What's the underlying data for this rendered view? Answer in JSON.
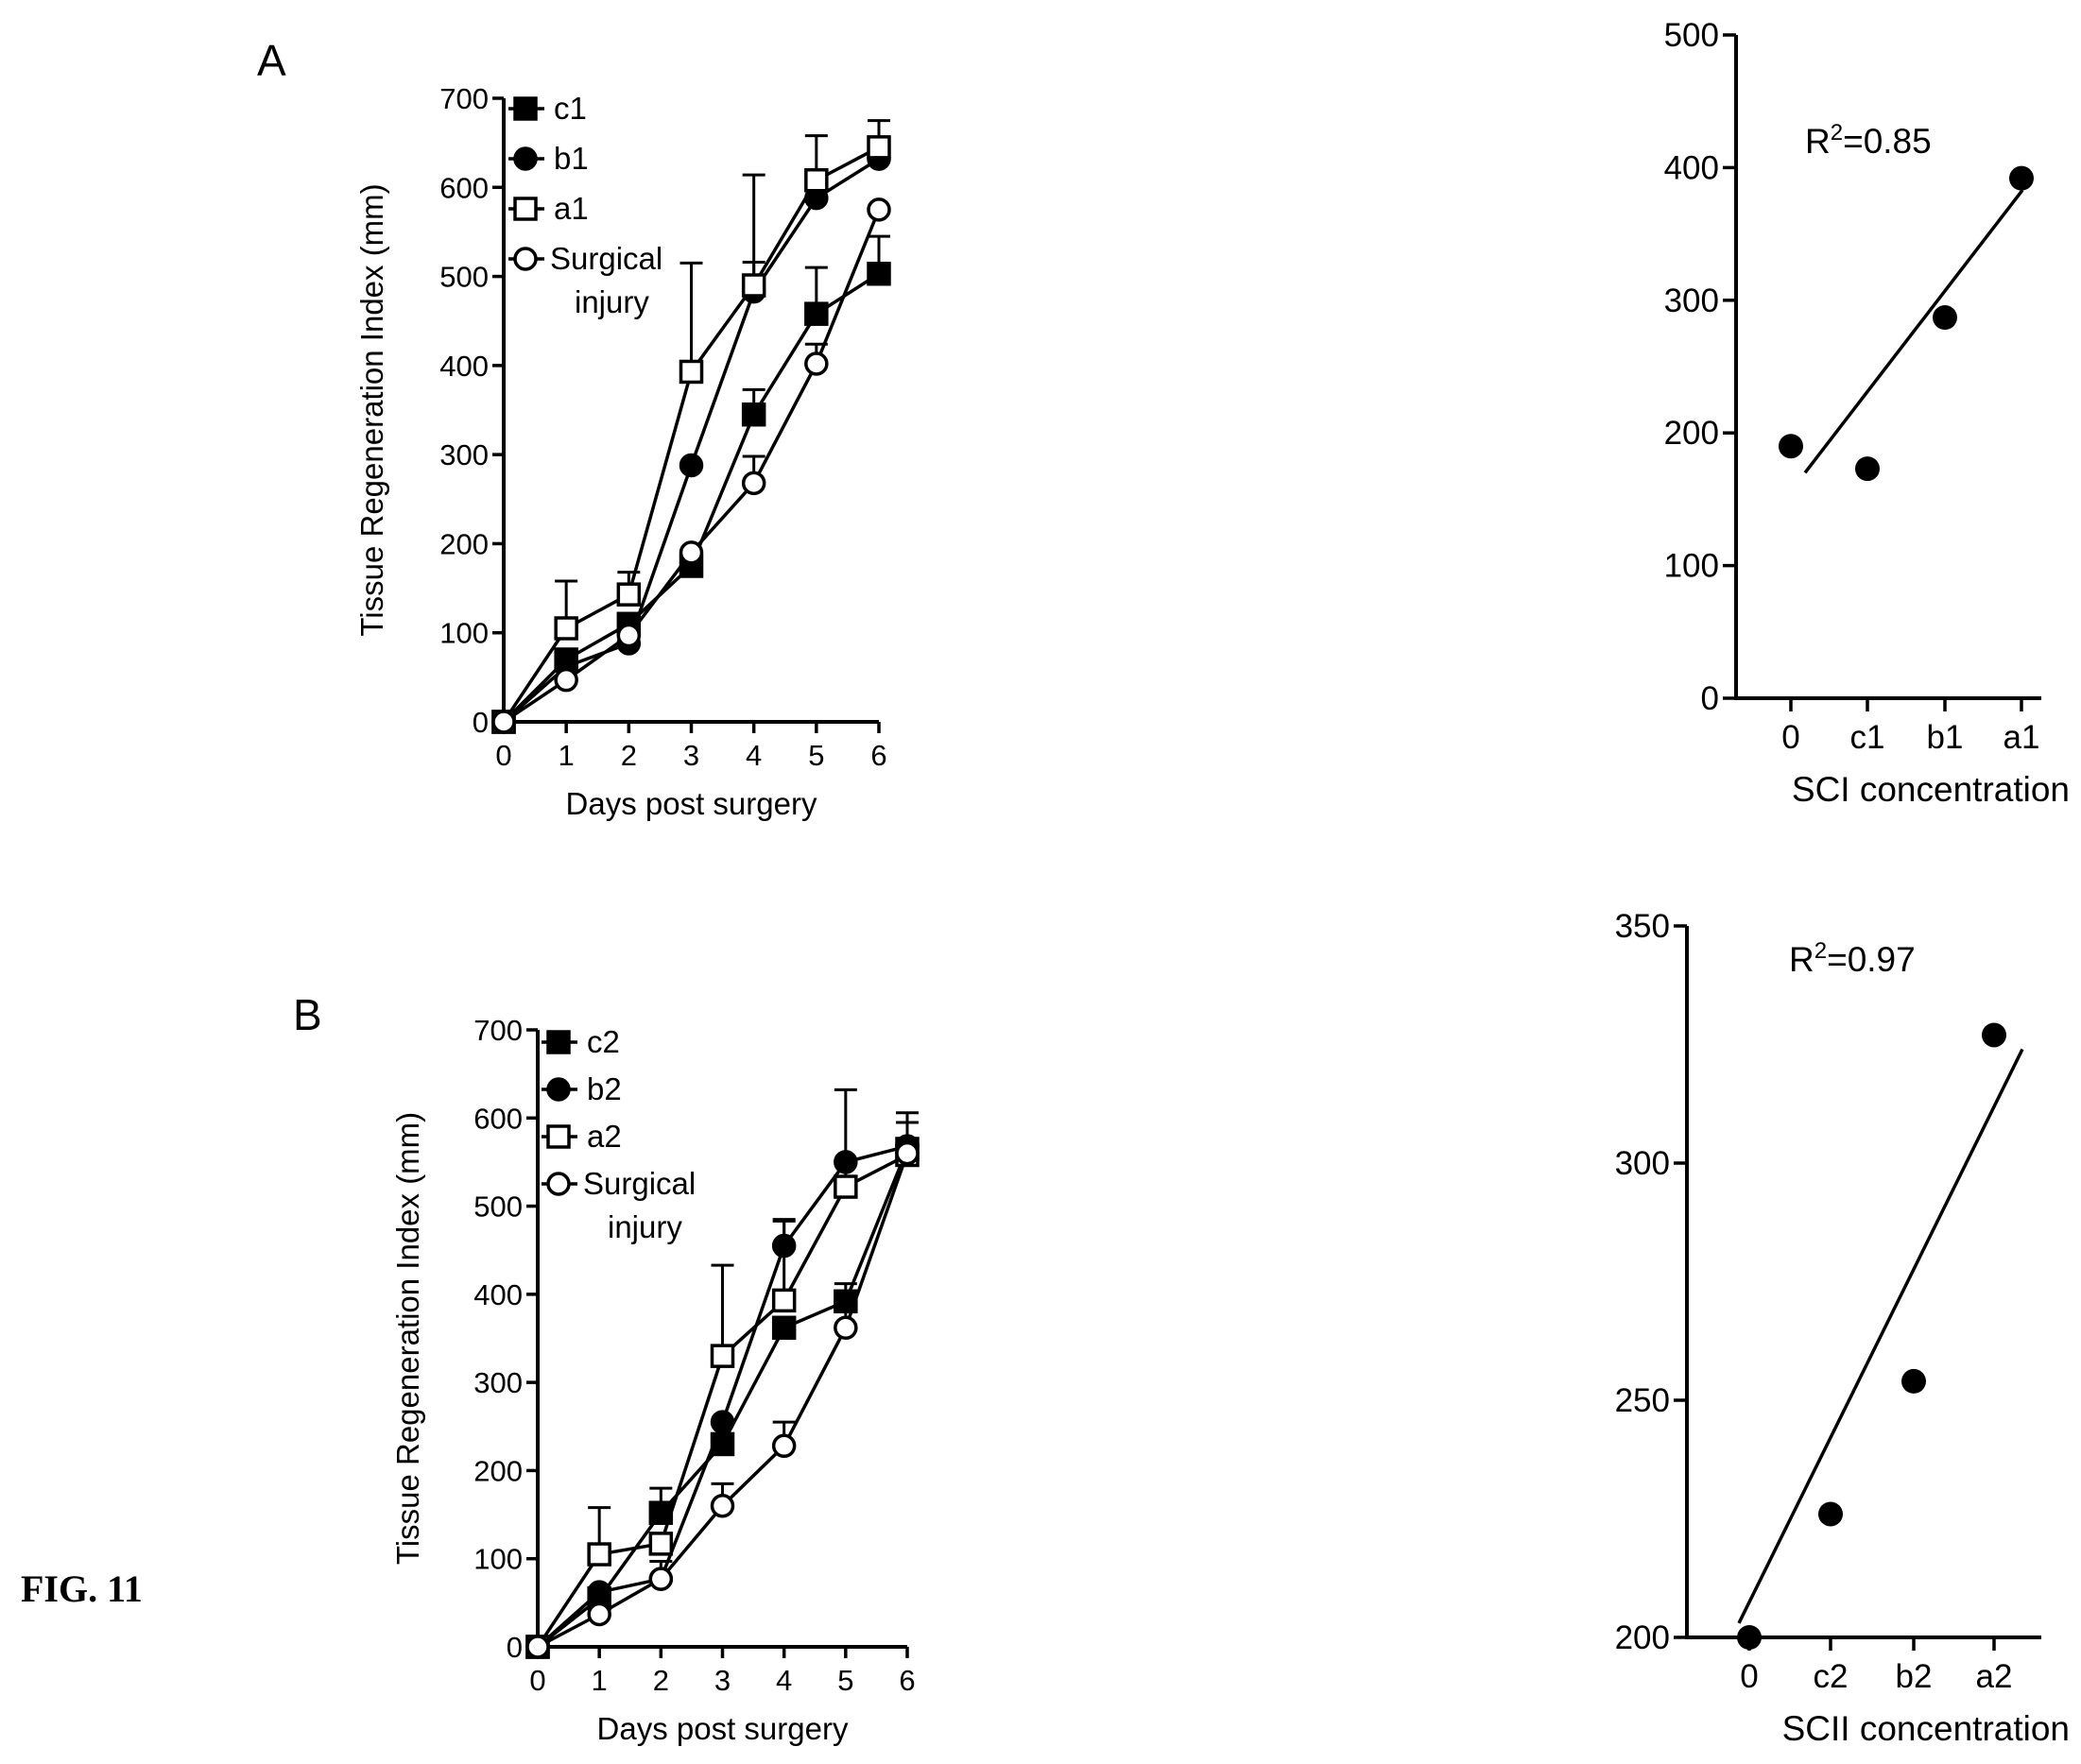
{
  "figure": {
    "caption": "FIG. 11"
  },
  "chart_data": [
    {
      "id": "A-left",
      "panel_label": "A",
      "type": "line",
      "xlabel": "Days post surgery",
      "ylabel": "Tissue Regeneration Index (mm)",
      "x": [
        0,
        1,
        2,
        3,
        4,
        5,
        6
      ],
      "xlim": [
        0,
        6
      ],
      "ylim": [
        0,
        700
      ],
      "xticks": [
        "0",
        "1",
        "2",
        "3",
        "4",
        "5",
        "6"
      ],
      "yticks": [
        "0",
        "100",
        "200",
        "300",
        "400",
        "500",
        "600",
        "700"
      ],
      "legend_position": "top-left",
      "series": [
        {
          "name": "c1",
          "marker": "square-filled",
          "values": [
            0,
            70,
            110,
            175,
            345,
            458,
            503
          ],
          "err": [
            0,
            0,
            0,
            0,
            28,
            52,
            42
          ]
        },
        {
          "name": "b1",
          "marker": "circle-filled",
          "values": [
            0,
            62,
            88,
            288,
            483,
            588,
            632
          ],
          "err": [
            0,
            0,
            20,
            0,
            33,
            0,
            0
          ]
        },
        {
          "name": "a1",
          "marker": "square-open",
          "values": [
            0,
            105,
            143,
            393,
            490,
            608,
            645
          ],
          "err": [
            0,
            53,
            25,
            122,
            124,
            50,
            30
          ]
        },
        {
          "name": "Surgical injury",
          "marker": "circle-open",
          "values": [
            0,
            47,
            97,
            190,
            268,
            402,
            575
          ],
          "err": [
            0,
            0,
            0,
            0,
            30,
            22,
            0
          ]
        }
      ]
    },
    {
      "id": "A-right",
      "type": "scatter",
      "xlabel": "SCI concentration",
      "ylabel": "",
      "categories": [
        "0",
        "c1",
        "b1",
        "a1"
      ],
      "values": [
        190,
        173,
        287,
        392
      ],
      "ylim": [
        0,
        500
      ],
      "yticks": [
        "0",
        "100",
        "200",
        "300",
        "400",
        "500"
      ],
      "fit_line": [
        170,
        383
      ],
      "annotation": {
        "base": "R",
        "sup": "2",
        "tail": "=0.85"
      }
    },
    {
      "id": "B-left",
      "panel_label": "B",
      "type": "line",
      "xlabel": "Days post surgery",
      "ylabel": "Tissue Regeneration Index (mm)",
      "x": [
        0,
        1,
        2,
        3,
        4,
        5,
        6
      ],
      "xlim": [
        0,
        6
      ],
      "ylim": [
        0,
        700
      ],
      "xticks": [
        "0",
        "1",
        "2",
        "3",
        "4",
        "5",
        "6"
      ],
      "yticks": [
        "0",
        "100",
        "200",
        "300",
        "400",
        "500",
        "600",
        "700"
      ],
      "legend_position": "top-left",
      "series": [
        {
          "name": "c2",
          "marker": "square-filled",
          "values": [
            0,
            55,
            152,
            230,
            362,
            392,
            565
          ],
          "err": [
            0,
            0,
            28,
            0,
            0,
            20,
            0
          ]
        },
        {
          "name": "b2",
          "marker": "circle-filled",
          "values": [
            0,
            62,
            77,
            255,
            455,
            550,
            568
          ],
          "err": [
            0,
            0,
            20,
            0,
            30,
            0,
            0
          ]
        },
        {
          "name": "a2",
          "marker": "square-open",
          "values": [
            0,
            105,
            117,
            330,
            393,
            522,
            558
          ],
          "err": [
            0,
            53,
            0,
            103,
            90,
            110,
            48
          ]
        },
        {
          "name": "Surgical injury",
          "marker": "circle-open",
          "values": [
            0,
            37,
            77,
            160,
            228,
            362,
            560
          ],
          "err": [
            0,
            0,
            0,
            25,
            27,
            25,
            35
          ]
        }
      ]
    },
    {
      "id": "B-right",
      "type": "scatter",
      "xlabel": "SCII concentration",
      "ylabel": "",
      "categories": [
        "0",
        "c2",
        "b2",
        "a2"
      ],
      "values": [
        200,
        226,
        254,
        327
      ],
      "ylim": [
        200,
        350
      ],
      "yticks": [
        "200",
        "250",
        "300",
        "350"
      ],
      "fit_line": [
        203,
        324
      ],
      "annotation": {
        "base": "R",
        "sup": "2",
        "tail": "=0.97"
      }
    }
  ]
}
